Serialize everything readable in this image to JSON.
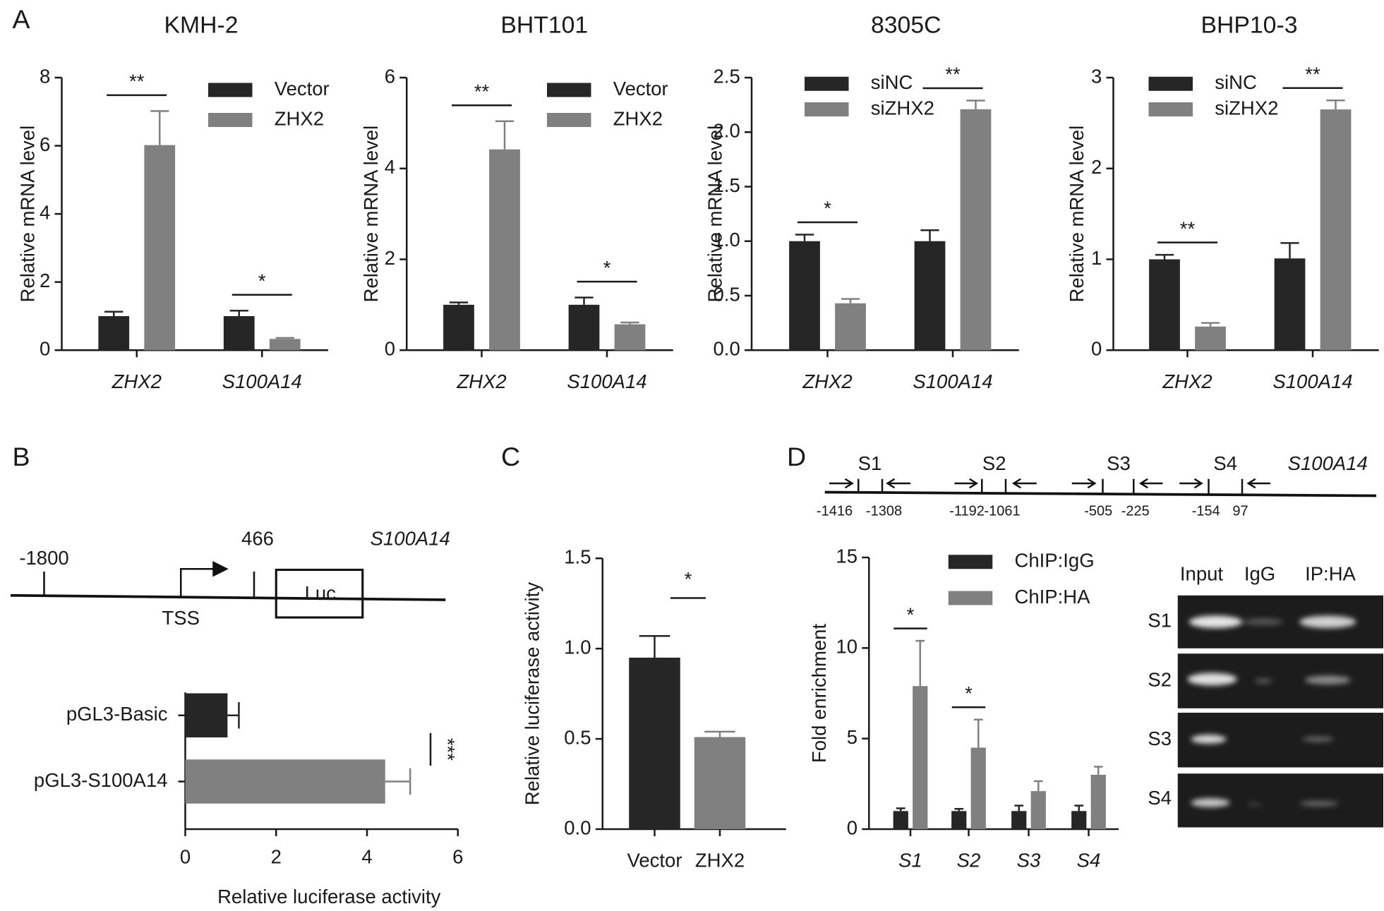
{
  "panel_labels": [
    "A",
    "B",
    "C",
    "D"
  ],
  "chart_data": [
    {
      "type": "bar",
      "title": "KMH-2",
      "y_label": "Relative mRNA level",
      "categories": [
        "ZHX2",
        "S100A14"
      ],
      "italic_categories": true,
      "series": [
        {
          "name": "Vector",
          "color": "#262626",
          "values": [
            1,
            1
          ],
          "errors": [
            0.13,
            0.16
          ]
        },
        {
          "name": "ZHX2",
          "color": "#808080",
          "values": [
            6.02,
            0.33
          ],
          "errors": [
            1.0,
            0.03
          ]
        }
      ],
      "ylim": [
        0,
        8
      ],
      "yticks": [
        0,
        2,
        4,
        6,
        8
      ],
      "significance": [
        "**",
        "*"
      ]
    },
    {
      "type": "bar",
      "title": "BHT101",
      "y_label": "Relative mRNA level",
      "categories": [
        "ZHX2",
        "S100A14"
      ],
      "italic_categories": true,
      "series": [
        {
          "name": "Vector",
          "color": "#262626",
          "values": [
            1,
            1
          ],
          "errors": [
            0.05,
            0.16
          ]
        },
        {
          "name": "ZHX2",
          "color": "#808080",
          "values": [
            4.42,
            0.57
          ],
          "errors": [
            0.62,
            0.04
          ]
        }
      ],
      "ylim": [
        0,
        6
      ],
      "yticks": [
        0,
        2,
        4,
        6
      ],
      "significance": [
        "**",
        "*"
      ]
    },
    {
      "type": "bar",
      "title": "8305C",
      "y_label": "Relative mRNA level",
      "categories": [
        "ZHX2",
        "S100A14"
      ],
      "italic_categories": true,
      "series": [
        {
          "name": "siNC",
          "color": "#262626",
          "values": [
            1,
            1
          ],
          "errors": [
            0.06,
            0.1
          ]
        },
        {
          "name": "siZHX2",
          "color": "#808080",
          "values": [
            0.43,
            2.21
          ],
          "errors": [
            0.04,
            0.08
          ]
        }
      ],
      "ylim": [
        0,
        2.5
      ],
      "yticks": [
        {
          "value": 0,
          "label": "0.0"
        },
        0.5,
        {
          "value": 1,
          "label": "1.0"
        },
        1.5,
        {
          "value": 2,
          "label": "2.0"
        },
        2.5
      ],
      "significance": [
        "*",
        "**"
      ]
    },
    {
      "type": "bar",
      "title": "BHP10-3",
      "y_label": "Relative mRNA level",
      "categories": [
        "ZHX2",
        "S100A14"
      ],
      "italic_categories": true,
      "series": [
        {
          "name": "siNC",
          "color": "#262626",
          "values": [
            1,
            1.01
          ],
          "errors": [
            0.05,
            0.17
          ]
        },
        {
          "name": "siZHX2",
          "color": "#808080",
          "values": [
            0.26,
            2.65
          ],
          "errors": [
            0.04,
            0.1
          ]
        }
      ],
      "ylim": [
        0,
        3
      ],
      "yticks": [
        0,
        1,
        2,
        3
      ],
      "significance": [
        "**",
        "**"
      ]
    },
    {
      "type": "barh",
      "x_label": "Relative luciferase activity",
      "categories": [
        "pGL3-Basic",
        "pGL3-S100A14"
      ],
      "values": [
        0.93,
        4.4
      ],
      "errors": [
        0.25,
        0.55
      ],
      "colors": [
        "#262626",
        "#808080"
      ],
      "xlim": [
        0,
        6
      ],
      "xticks": [
        0,
        2,
        4,
        6
      ],
      "significance": "***"
    },
    {
      "type": "bar",
      "y_label": "Relative luciferase activity",
      "categories": [
        "Vector",
        "ZHX2"
      ],
      "italic_categories": false,
      "values": [
        0.95,
        0.51
      ],
      "errors": [
        0.12,
        0.03
      ],
      "colors": [
        "#262626",
        "#808080"
      ],
      "ylim": [
        0,
        1.5
      ],
      "yticks": [
        {
          "value": 0,
          "label": "0.0"
        },
        0.5,
        {
          "value": 1,
          "label": "1.0"
        },
        1.5
      ],
      "significance": "*"
    },
    {
      "type": "bar",
      "y_label": "Fold enrichment",
      "categories": [
        "S1",
        "S2",
        "S3",
        "S4"
      ],
      "italic_categories": true,
      "series": [
        {
          "name": "ChIP:IgG",
          "color": "#262626",
          "values": [
            1,
            1,
            1,
            1
          ],
          "errors": [
            0.15,
            0.12,
            0.3,
            0.3
          ]
        },
        {
          "name": "ChIP:HA",
          "color": "#808080",
          "values": [
            7.9,
            4.5,
            2.1,
            3.0
          ],
          "errors": [
            2.5,
            1.55,
            0.55,
            0.45
          ]
        }
      ],
      "ylim": [
        0,
        15
      ],
      "yticks": [
        0,
        5,
        10,
        15
      ],
      "significance": [
        "*",
        "*",
        null,
        null
      ]
    }
  ],
  "promoter_diagram": {
    "gene": "S100A14",
    "start": "-1800",
    "end": "466",
    "tss": "TSS",
    "reporter": "Luc"
  },
  "chip_diagram": {
    "gene": "S100A14",
    "sites": [
      {
        "name": "S1",
        "from": "-1416",
        "to": "-1308"
      },
      {
        "name": "S2",
        "from": "-1192",
        "to": "-1061"
      },
      {
        "name": "S3",
        "from": "-505",
        "to": "-225"
      },
      {
        "name": "S4",
        "from": "-154",
        "to": "97"
      }
    ]
  },
  "gel": {
    "columns": [
      "Input",
      "IgG",
      "IP:HA"
    ],
    "rows": [
      "S1",
      "S2",
      "S3",
      "S4"
    ]
  }
}
